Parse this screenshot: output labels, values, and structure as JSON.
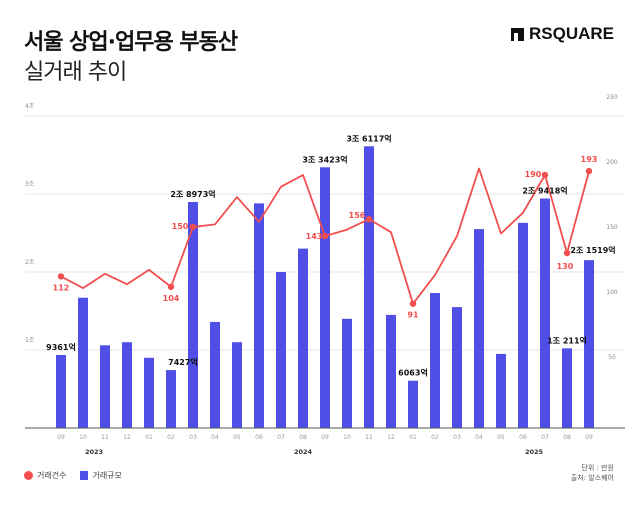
{
  "header": {
    "title": "서울 상업·업무용 부동산",
    "subtitle": "실거래 추이",
    "logo_text": "RSQUARE"
  },
  "colors": {
    "bars": "#4f4fe8",
    "line": "#f24e4e",
    "grid": "#e6e6e6"
  },
  "legend": [
    {
      "label": "거래건수",
      "color": "#f24e4e",
      "shape": "circle"
    },
    {
      "label": "거래규모",
      "color": "#4f4fe8",
      "shape": "square"
    }
  ],
  "notes": {
    "unit": "단위 : 만원",
    "source": "출처: 알스퀘어"
  },
  "chart_data": {
    "type": "bar+line",
    "categories": [
      "09",
      "10",
      "11",
      "12",
      "01",
      "02",
      "03",
      "04",
      "05",
      "06",
      "07",
      "08",
      "09",
      "10",
      "11",
      "12",
      "01",
      "02",
      "03",
      "04",
      "05",
      "06",
      "07",
      "08",
      "09"
    ],
    "year_labels": [
      {
        "label": "2023",
        "at_index": 1.5
      },
      {
        "label": "2024",
        "at_index": 11
      },
      {
        "label": "2025",
        "at_index": 21.5
      }
    ],
    "left_axis": {
      "ticks": [
        "1조",
        "2조",
        "3조",
        "4조"
      ],
      "tick_values": [
        10000,
        20000,
        30000,
        40000
      ],
      "range": [
        0,
        40000
      ],
      "unit": "억"
    },
    "right_axis": {
      "ticks": [
        "50",
        "100",
        "150",
        "200",
        "250"
      ],
      "tick_values": [
        50,
        100,
        150,
        200,
        250
      ],
      "range": [
        0,
        250
      ]
    },
    "grid": true,
    "legend_position": "bottom-left",
    "series": [
      {
        "name": "거래규모",
        "type": "bar",
        "axis": "left",
        "values": [
          9361,
          16700,
          10600,
          11000,
          9000,
          7427,
          28973,
          13600,
          11000,
          28800,
          20000,
          23000,
          33423,
          14000,
          36117,
          14500,
          6063,
          17300,
          15500,
          25500,
          9500,
          26300,
          29418,
          10211,
          21519
        ],
        "data_labels": {
          "0": "9361억",
          "5": "7427억",
          "6": "2조 8973억",
          "12": "3조 3423억",
          "14": "3조 6117억",
          "16": "6063억",
          "22": "2조 9418억",
          "23": "1조 211억",
          "24": "2조 1519억"
        }
      },
      {
        "name": "거래건수",
        "type": "line",
        "axis": "right",
        "values": [
          112,
          103,
          114,
          106,
          117,
          104,
          150,
          152,
          173,
          154,
          181,
          190,
          143,
          148,
          156,
          146,
          91,
          113,
          143,
          195,
          145,
          161,
          190,
          130,
          193
        ],
        "data_labels": {
          "0": "112",
          "5": "104",
          "6": "150",
          "12": "143",
          "14": "156",
          "16": "91",
          "22": "190",
          "23": "130",
          "24": "193"
        }
      }
    ]
  }
}
